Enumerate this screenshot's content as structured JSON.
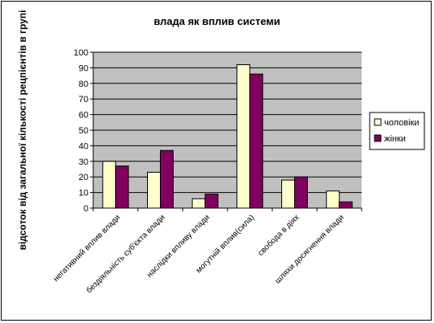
{
  "chart_data": {
    "type": "bar",
    "title": "влада як вплив системи",
    "xlabel": "",
    "ylabel": "відсоток від загальної кількості рецпієнтів в групі",
    "ylim": [
      0,
      100
    ],
    "yticks": [
      0,
      10,
      20,
      30,
      40,
      50,
      60,
      70,
      80,
      90,
      100
    ],
    "categories": [
      "негативний вплив влади",
      "бездіяльність суб'єкта влади",
      "наслідки впливу влади",
      "могутній вплив(сила)",
      "свобода в діях",
      "шляхи досягнення влади"
    ],
    "series": [
      {
        "name": "чоловіки",
        "color": "#ffffcc",
        "values": [
          30,
          23,
          6,
          92,
          18,
          11
        ]
      },
      {
        "name": "жінки",
        "color": "#800060",
        "values": [
          27,
          37,
          9,
          86,
          20,
          4
        ]
      }
    ],
    "plot_background": "#c0c0c0",
    "grid": true,
    "legend": "right"
  }
}
